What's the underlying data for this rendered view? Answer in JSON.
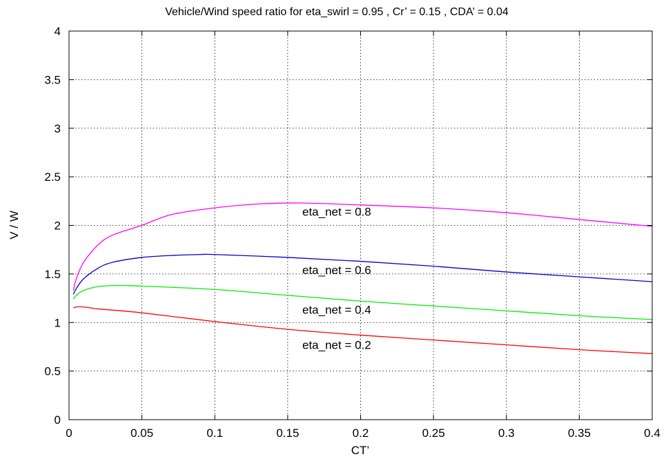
{
  "chart_data": {
    "type": "line",
    "title": "Vehicle/Wind speed ratio  for  eta_swirl = 0.95 ,  Cr’ = 0.15 ,  CDA’ = 0.04",
    "xlabel": "CT’",
    "ylabel": "V / W",
    "xlim": [
      0,
      0.4
    ],
    "ylim": [
      0,
      4
    ],
    "xticks": [
      0,
      0.05,
      0.1,
      0.15,
      0.2,
      0.25,
      0.3,
      0.35,
      0.4
    ],
    "xtick_labels": [
      "0",
      "0.05",
      "0.1",
      "0.15",
      "0.2",
      "0.25",
      "0.3",
      "0.35",
      "0.4"
    ],
    "yticks": [
      0,
      0.5,
      1,
      1.5,
      2,
      2.5,
      3,
      3.5,
      4
    ],
    "ytick_labels": [
      "0",
      "0.5",
      "1",
      "1.5",
      "2",
      "2.5",
      "3",
      "3.5",
      "4"
    ],
    "grid": true,
    "series": [
      {
        "name": "eta_net = 0.8",
        "color": "#ff00ff",
        "label_at": [
          0.16,
          2.1
        ],
        "x": [
          0.003,
          0.005,
          0.01,
          0.02,
          0.03,
          0.05,
          0.07,
          0.1,
          0.13,
          0.16,
          0.2,
          0.25,
          0.3,
          0.35,
          0.4
        ],
        "y": [
          1.33,
          1.45,
          1.62,
          1.8,
          1.9,
          2.0,
          2.11,
          2.18,
          2.22,
          2.23,
          2.21,
          2.18,
          2.13,
          2.06,
          1.99
        ]
      },
      {
        "name": "eta_net = 0.6",
        "color": "#0000cc",
        "label_at": [
          0.16,
          1.5
        ],
        "x": [
          0.003,
          0.005,
          0.01,
          0.02,
          0.03,
          0.05,
          0.07,
          0.09,
          0.1,
          0.15,
          0.2,
          0.25,
          0.3,
          0.35,
          0.4
        ],
        "y": [
          1.29,
          1.35,
          1.45,
          1.56,
          1.62,
          1.67,
          1.69,
          1.7,
          1.7,
          1.67,
          1.63,
          1.58,
          1.52,
          1.47,
          1.42
        ]
      },
      {
        "name": "eta_net = 0.4",
        "color": "#00ee00",
        "label_at": [
          0.16,
          1.09
        ],
        "x": [
          0.003,
          0.005,
          0.01,
          0.02,
          0.03,
          0.04,
          0.05,
          0.1,
          0.15,
          0.2,
          0.25,
          0.3,
          0.35,
          0.4
        ],
        "y": [
          1.24,
          1.28,
          1.33,
          1.37,
          1.38,
          1.38,
          1.375,
          1.34,
          1.28,
          1.22,
          1.17,
          1.12,
          1.07,
          1.03
        ]
      },
      {
        "name": "eta_net = 0.2",
        "color": "#ff0000",
        "label_at": [
          0.16,
          0.73
        ],
        "x": [
          0.003,
          0.005,
          0.01,
          0.015,
          0.02,
          0.05,
          0.1,
          0.15,
          0.2,
          0.25,
          0.3,
          0.35,
          0.4
        ],
        "y": [
          1.15,
          1.16,
          1.16,
          1.15,
          1.14,
          1.1,
          1.01,
          0.93,
          0.87,
          0.82,
          0.77,
          0.72,
          0.68
        ]
      }
    ]
  }
}
